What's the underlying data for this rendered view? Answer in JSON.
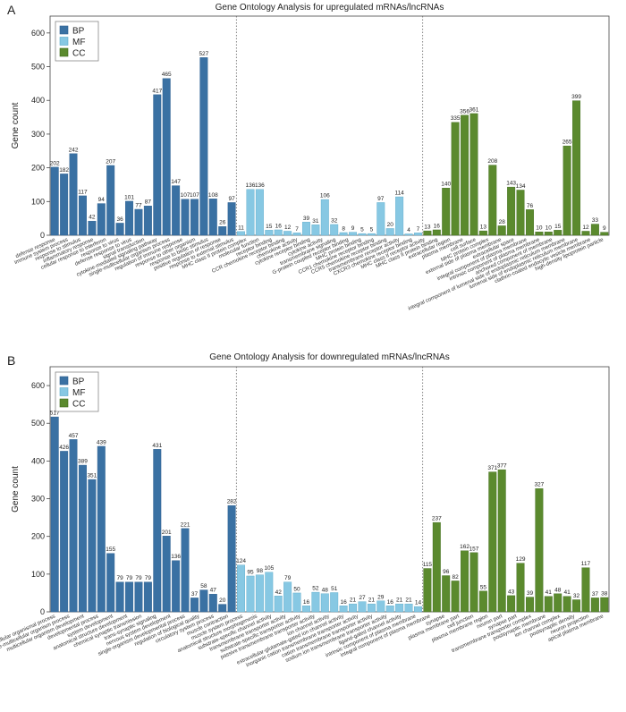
{
  "colors": {
    "BP": "#3a71a3",
    "MF": "#87c8e3",
    "CC": "#5b8a2e"
  },
  "chart_data": [
    {
      "panel": "A",
      "type": "bar",
      "title": "Gene Ontology Analysis for upregulated mRNAs/lncRNAs",
      "ylabel": "Gene count",
      "ylim": [
        0,
        650
      ],
      "yticks": [
        0,
        100,
        200,
        300,
        400,
        500,
        600
      ],
      "legend": [
        "BP",
        "MF",
        "CC"
      ],
      "categories_shown": [
        "defense response",
        "immune system process",
        "response to stimulus",
        "inflammatory response",
        "cellular response to interferon",
        "response to virus",
        "defense response to virus",
        "signal transduction",
        "cytokine-mediated signaling pathway",
        "single-multicellular organism process",
        "regulation of immune response",
        "response to other organism",
        "response to biotic stimulus",
        "positive regulation of response",
        "response to external stimulus",
        "MHC class II protein complex",
        "molecular function",
        "receptor binding",
        "CCR chemokine receptor binding",
        "chemokine activity",
        "cytokine receptor binding",
        "cytokine activity",
        "transmembrane signaling",
        "G-protein coupled receptor binding",
        "MHC protein binding",
        "CCR1 chemokine receptor binding",
        "CCR5 chemokine receptor binding",
        "transmembrane receptor activity",
        "CXCR3 chemokine receptor binding",
        "MHC class II receptor activity",
        "MHC class II protein binding",
        "extracellular region",
        "plasma membrane",
        "cell surface",
        "MHC protein complex",
        "external side of plasma membrane",
        "extracellular space",
        "integral component of plasma membrane",
        "intrinsic component of plasma membrane",
        "anchored component of membrane",
        "integral component of lumenal side of endoplasmic reticulum membrane",
        "lumenal side of endoplasmic reticulum membrane",
        "clathrin-coated endocytic vesicle membrane",
        "high-density lipoprotein particle"
      ],
      "series": [
        {
          "name": "BP",
          "values": [
            202,
            182,
            242,
            117,
            42,
            94,
            207,
            36,
            101,
            77,
            87,
            417,
            465,
            147,
            107,
            107,
            527,
            108,
            26,
            97
          ]
        },
        {
          "name": "MF",
          "values": [
            11,
            136,
            136,
            15,
            16,
            12,
            7,
            39,
            31,
            106,
            32,
            8,
            9,
            5,
            5,
            97,
            20,
            114,
            4,
            7
          ]
        },
        {
          "name": "CC",
          "values": [
            13,
            16,
            140,
            335,
            356,
            361,
            13,
            208,
            28,
            143,
            134,
            76,
            10,
            10,
            15,
            265,
            399,
            12,
            33,
            9
          ]
        }
      ]
    },
    {
      "panel": "B",
      "type": "bar",
      "title": "Gene Ontology Analysis for downregulated mRNAs/lncRNAs",
      "ylabel": "Gene count",
      "ylim": [
        0,
        650
      ],
      "yticks": [
        0,
        100,
        200,
        300,
        400,
        500,
        600
      ],
      "legend": [
        "BP",
        "MF",
        "CC"
      ],
      "categories_shown": [
        "multicellular organismal process",
        "single-multicellular organism process",
        "multicellular organism development",
        "developmental process",
        "system development",
        "anatomical structure development",
        "chemical synaptic transmission",
        "trans-synaptic signaling",
        "nervous system development",
        "single-organism developmental process",
        "regulation of biological quality",
        "circulatory system process",
        "muscle contraction",
        "muscle system process",
        "anatomical structure morphogenesis",
        "substrate-specific channel activity",
        "transmembrane transporter activity",
        "substrate-specific transporter activity",
        "passive transmembrane transporter activity",
        "ion channel activity",
        "extracellular-glutamate-gated ion channel activity",
        "inorganic cation transmembrane transporter activity",
        "cation transmembrane transporter activity",
        "sodium ion transmembrane transporter activity",
        "ligand-gated channel activity",
        "intrinsic component of plasma membrane",
        "integral component of plasma membrane",
        "synapse",
        "plasma membrane part",
        "cell junction",
        "plasma membrane region",
        "neuron part",
        "synapse part",
        "transmembrane transporter complex",
        "postsynaptic membrane",
        "ion channel complex",
        "postsynaptic density",
        "neuron projection",
        "apical plasma membrane"
      ],
      "series": [
        {
          "name": "BP",
          "values": [
            517,
            426,
            457,
            389,
            351,
            439,
            155,
            79,
            79,
            79,
            79,
            431,
            201,
            136,
            221,
            37,
            58,
            47,
            20,
            282
          ]
        },
        {
          "name": "MF",
          "values": [
            124,
            95,
            98,
            105,
            42,
            79,
            50,
            16,
            52,
            48,
            51,
            16,
            21,
            27,
            21,
            29,
            16,
            21,
            21,
            14
          ]
        },
        {
          "name": "CC",
          "values": [
            115,
            237,
            96,
            82,
            162,
            157,
            55,
            371,
            377,
            43,
            129,
            39,
            327,
            41,
            48,
            41,
            32,
            117,
            37,
            38
          ]
        }
      ]
    }
  ]
}
